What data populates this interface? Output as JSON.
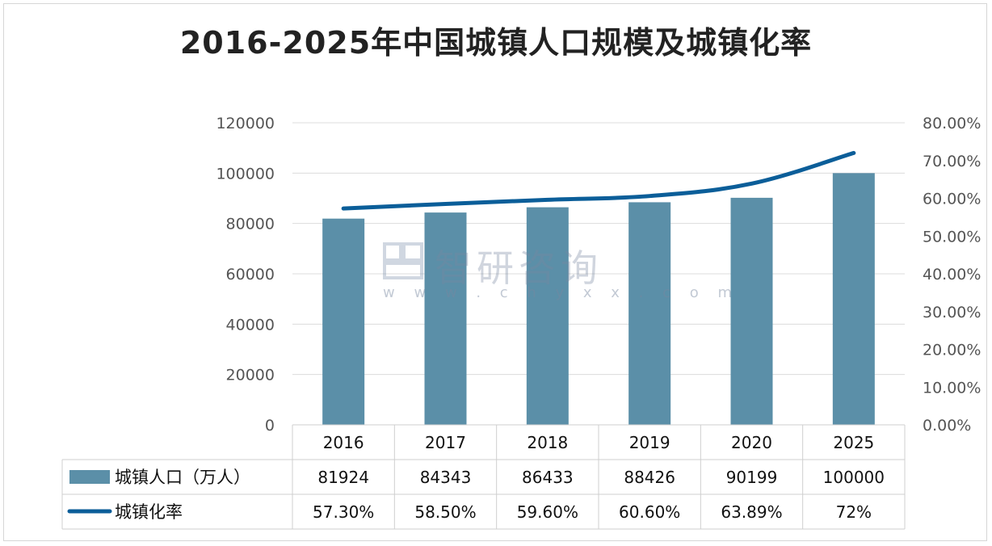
{
  "chart_data": {
    "type": "bar",
    "title": "2016-2025年中国城镇人口规模及城镇化率",
    "categories": [
      "2016",
      "2017",
      "2018",
      "2019",
      "2020",
      "2025"
    ],
    "series": [
      {
        "name": "城镇人口（万人）",
        "type": "bar",
        "axis": "left",
        "values": [
          81924,
          84343,
          86433,
          88426,
          90199,
          100000
        ],
        "value_labels": [
          "81924",
          "84343",
          "86433",
          "88426",
          "90199",
          "100000"
        ],
        "color": "#5b8fa8"
      },
      {
        "name": "城镇化率",
        "type": "line",
        "axis": "right",
        "values": [
          57.3,
          58.5,
          59.6,
          60.6,
          63.89,
          72
        ],
        "value_labels": [
          "57.30%",
          "58.50%",
          "59.60%",
          "60.60%",
          "63.89%",
          "72%"
        ],
        "color": "#0b5e99"
      }
    ],
    "y_left": {
      "ylim": [
        0,
        120000
      ],
      "ticks": [
        "0",
        "20000",
        "40000",
        "60000",
        "80000",
        "100000",
        "120000"
      ]
    },
    "y_right": {
      "ylim": [
        0,
        80
      ],
      "ticks": [
        "0.00%",
        "10.00%",
        "20.00%",
        "30.00%",
        "40.00%",
        "50.00%",
        "60.00%",
        "70.00%",
        "80.00%"
      ]
    },
    "grid": true,
    "legend": "data-table"
  },
  "watermark": {
    "name": "智研咨询",
    "url": "w w w . c h y x x . c o m"
  }
}
